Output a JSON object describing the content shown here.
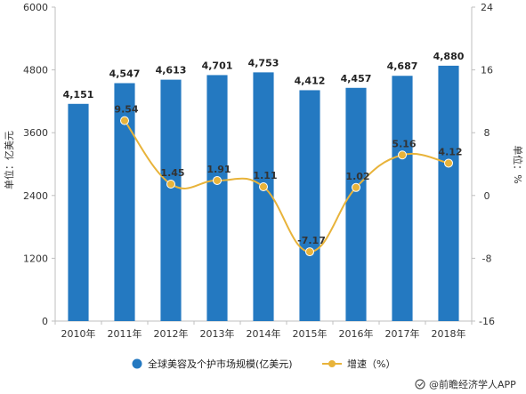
{
  "chart_data": {
    "type": "bar",
    "categories": [
      "2010年",
      "2011年",
      "2012年",
      "2013年",
      "2014年",
      "2015年",
      "2016年",
      "2017年",
      "2018年"
    ],
    "series": [
      {
        "name": "全球美容及个护市场规模(亿美元)",
        "type": "bar",
        "axis": "left",
        "values": [
          4151,
          4547,
          4613,
          4701,
          4753,
          4412,
          4457,
          4687,
          4880
        ],
        "labels": [
          "4,151",
          "4,547",
          "4,613",
          "4,701",
          "4,753",
          "4,412",
          "4,457",
          "4,687",
          "4,880"
        ],
        "color": "#2479c1"
      },
      {
        "name": "增速（%）",
        "type": "line",
        "axis": "right",
        "values": [
          null,
          9.54,
          1.45,
          1.91,
          1.11,
          -7.17,
          1.02,
          5.16,
          4.12
        ],
        "labels": [
          "",
          "9.54",
          "1.45",
          "1.91",
          "1.11",
          "-7.17",
          "1.02",
          "5.16",
          "4.12"
        ],
        "color": "#e8b33a"
      }
    ],
    "ylabel": "单位：亿美元",
    "y2label": "单位：%",
    "ylim": [
      0,
      6000
    ],
    "y2lim": [
      -16,
      24
    ],
    "yticks": [
      "0",
      "1200",
      "2400",
      "3600",
      "4800",
      "6000"
    ],
    "y2ticks": [
      "-16",
      "-8",
      "0",
      "8",
      "16",
      "24"
    ],
    "grid": false,
    "legend": "bottom"
  },
  "footer": {
    "source": "@前瞻经济学人APP"
  }
}
